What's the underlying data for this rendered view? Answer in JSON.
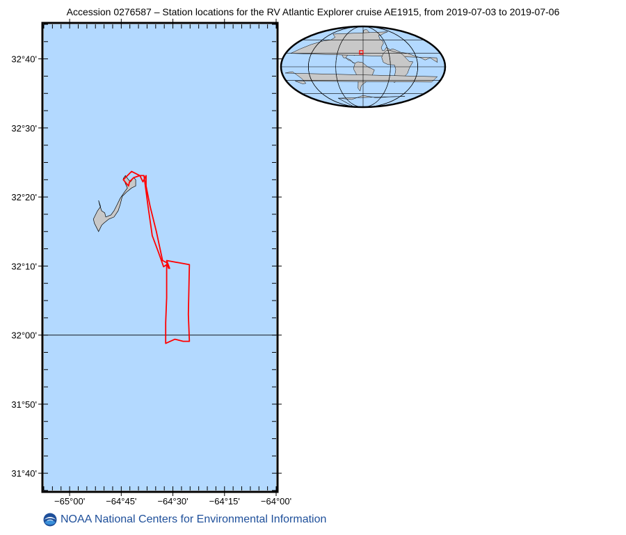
{
  "title": "Accession 0276587 – Station locations for the RV Atlantic Explorer cruise AE1915, from 2019-07-03 to 2019-07-06",
  "footer": {
    "text": "NOAA National Centers for Environmental Information",
    "logo_icon": "noaa-logo-icon"
  },
  "map": {
    "lon_range": [
      -65.125,
      -64.0
    ],
    "lat_range": [
      31.625,
      32.75
    ],
    "ocean_color": "#b3d9ff",
    "land_color": "#c8c8c8",
    "track_color": "#ff0000",
    "lat_ticks": [
      {
        "value": 31.6667,
        "label": "31°40'"
      },
      {
        "value": 31.8333,
        "label": "31°50'"
      },
      {
        "value": 32.0,
        "label": "32°00'"
      },
      {
        "value": 32.1667,
        "label": "32°10'"
      },
      {
        "value": 32.3333,
        "label": "32°20'"
      },
      {
        "value": 32.5,
        "label": "32°30'"
      },
      {
        "value": 32.6667,
        "label": "32°40'"
      }
    ],
    "lon_ticks": [
      {
        "value": -65.0,
        "label": "−65°00'"
      },
      {
        "value": -64.75,
        "label": "−64°45'"
      },
      {
        "value": -64.5,
        "label": "−64°30'"
      },
      {
        "value": -64.25,
        "label": "−64°15'"
      },
      {
        "value": -64.0,
        "label": "−64°00'"
      }
    ],
    "reference_latitude": 32.0,
    "cruise_track": [
      [
        -64.52,
        32.16
      ],
      [
        -64.53,
        32.175
      ],
      [
        -64.55,
        32.18
      ],
      [
        -64.58,
        32.25
      ],
      [
        -64.61,
        32.31
      ],
      [
        -64.63,
        32.36
      ],
      [
        -64.63,
        32.385
      ],
      [
        -64.645,
        32.37
      ],
      [
        -64.66,
        32.385
      ],
      [
        -64.7,
        32.395
      ],
      [
        -64.74,
        32.375
      ],
      [
        -64.715,
        32.36
      ],
      [
        -64.71,
        32.37
      ],
      [
        -64.69,
        32.38
      ],
      [
        -64.66,
        32.385
      ],
      [
        -64.64,
        32.385
      ],
      [
        -64.62,
        32.31
      ],
      [
        -64.6,
        32.24
      ],
      [
        -64.57,
        32.2
      ],
      [
        -64.545,
        32.165
      ],
      [
        -64.53,
        32.17
      ],
      [
        -64.53,
        32.145
      ],
      [
        -64.53,
        32.09
      ],
      [
        -64.535,
        32.03
      ],
      [
        -64.535,
        31.98
      ],
      [
        -64.49,
        31.99
      ],
      [
        -64.45,
        31.985
      ],
      [
        -64.42,
        31.985
      ],
      [
        -64.425,
        32.05
      ],
      [
        -64.42,
        32.17
      ],
      [
        -64.53,
        32.18
      ],
      [
        -64.515,
        32.16
      ]
    ],
    "bermuda_outline": [
      [
        -64.87,
        32.26
      ],
      [
        -64.86,
        32.25
      ],
      [
        -64.855,
        32.255
      ],
      [
        -64.845,
        32.265
      ],
      [
        -64.835,
        32.27
      ],
      [
        -64.81,
        32.28
      ],
      [
        -64.785,
        32.285
      ],
      [
        -64.765,
        32.3
      ],
      [
        -64.755,
        32.315
      ],
      [
        -64.745,
        32.335
      ],
      [
        -64.725,
        32.345
      ],
      [
        -64.7,
        32.355
      ],
      [
        -64.68,
        32.36
      ],
      [
        -64.68,
        32.375
      ],
      [
        -64.69,
        32.38
      ],
      [
        -64.705,
        32.37
      ],
      [
        -64.715,
        32.375
      ],
      [
        -64.73,
        32.385
      ],
      [
        -64.74,
        32.378
      ],
      [
        -64.725,
        32.36
      ],
      [
        -64.72,
        32.355
      ],
      [
        -64.735,
        32.345
      ],
      [
        -64.755,
        32.33
      ],
      [
        -64.77,
        32.315
      ],
      [
        -64.785,
        32.3
      ],
      [
        -64.8,
        32.29
      ],
      [
        -64.825,
        32.285
      ],
      [
        -64.83,
        32.295
      ],
      [
        -64.845,
        32.3
      ],
      [
        -64.855,
        32.315
      ],
      [
        -64.86,
        32.325
      ],
      [
        -64.85,
        32.31
      ],
      [
        -64.865,
        32.3
      ],
      [
        -64.875,
        32.29
      ],
      [
        -64.885,
        32.28
      ],
      [
        -64.88,
        32.27
      ]
    ]
  },
  "inset": {
    "land_color": "#c8c8c8",
    "ocean_color": "#b3d9ff",
    "marker_color": "#ff0000",
    "center_lon": -60,
    "marker": {
      "lon": -64.5,
      "lat": 32.1
    }
  }
}
